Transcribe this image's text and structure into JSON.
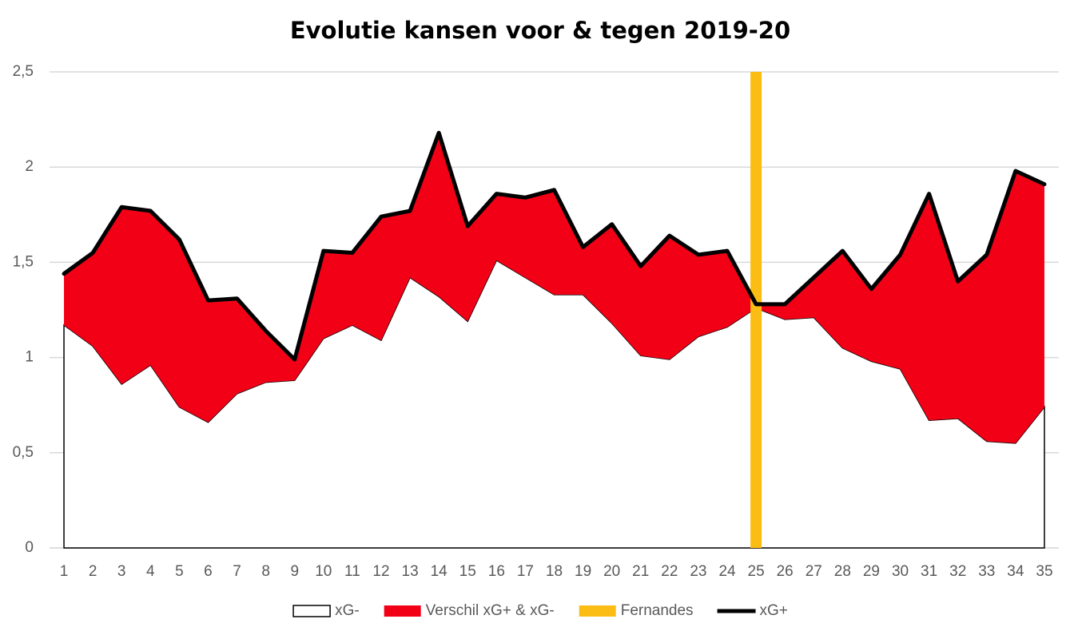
{
  "chart_data": {
    "type": "combo",
    "title": "Evolutie kansen voor & tegen 2019-20",
    "categories": [
      1,
      2,
      3,
      4,
      5,
      6,
      7,
      8,
      9,
      10,
      11,
      12,
      13,
      14,
      15,
      16,
      17,
      18,
      19,
      20,
      21,
      22,
      23,
      24,
      25,
      26,
      27,
      28,
      29,
      30,
      31,
      32,
      33,
      34,
      35
    ],
    "ylim": [
      0,
      2.5
    ],
    "yticks": [
      0,
      {
        "value": 0.5,
        "label": "0,5"
      },
      1,
      {
        "value": 1.5,
        "label": "1,5"
      },
      2,
      {
        "value": 2.5,
        "label": "2,5"
      }
    ],
    "grid": true,
    "legend": "bottom",
    "series": [
      {
        "name": "xG-",
        "type": "area",
        "stack": true,
        "color": "#ffffff",
        "outline": "#000000",
        "values": [
          1.17,
          1.06,
          0.86,
          0.96,
          0.74,
          0.66,
          0.81,
          0.87,
          0.88,
          1.1,
          1.17,
          1.09,
          1.42,
          1.32,
          1.19,
          1.51,
          1.42,
          1.33,
          1.33,
          1.18,
          1.01,
          0.99,
          1.11,
          1.16,
          1.26,
          1.2,
          1.21,
          1.05,
          0.98,
          0.94,
          0.67,
          0.68,
          0.56,
          0.55,
          0.74
        ]
      },
      {
        "name": "Verschil xG+ & xG-",
        "type": "area",
        "stack": true,
        "color": "#f20016",
        "values": [
          0.27,
          0.49,
          0.93,
          0.81,
          0.88,
          0.64,
          0.5,
          0.27,
          0.11,
          0.46,
          0.38,
          0.65,
          0.35,
          0.86,
          0.5,
          0.35,
          0.42,
          0.55,
          0.25,
          0.52,
          0.47,
          0.65,
          0.43,
          0.4,
          0.02,
          0.08,
          0.21,
          0.51,
          0.38,
          0.6,
          1.19,
          0.72,
          0.98,
          1.43,
          1.17
        ]
      },
      {
        "name": "Fernandes",
        "type": "bar",
        "color": "#fbbd14",
        "values": [
          null,
          null,
          null,
          null,
          null,
          null,
          null,
          null,
          null,
          null,
          null,
          null,
          null,
          null,
          null,
          null,
          null,
          null,
          null,
          null,
          null,
          null,
          null,
          null,
          2.5,
          null,
          null,
          null,
          null,
          null,
          null,
          null,
          null,
          null,
          null
        ]
      },
      {
        "name": "xG+",
        "type": "line",
        "color": "#000000",
        "values": [
          1.44,
          1.55,
          1.79,
          1.77,
          1.62,
          1.3,
          1.31,
          1.14,
          0.99,
          1.56,
          1.55,
          1.74,
          1.77,
          2.18,
          1.69,
          1.86,
          1.84,
          1.88,
          1.58,
          1.7,
          1.48,
          1.64,
          1.54,
          1.56,
          1.28,
          1.28,
          1.42,
          1.56,
          1.36,
          1.54,
          1.86,
          1.4,
          1.54,
          1.98,
          1.91
        ]
      }
    ]
  }
}
